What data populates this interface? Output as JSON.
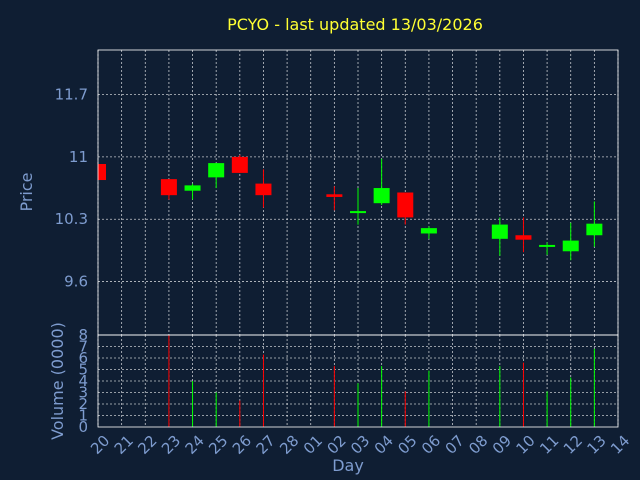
{
  "chart_data": {
    "type": "candlestick",
    "title": "PCYO - last updated 13/03/2026",
    "xlabel": "Day",
    "ylabel": "Price",
    "volume_label": "Volume (0000)",
    "x_ticks": [
      "20",
      "21",
      "22",
      "23",
      "24",
      "25",
      "26",
      "27",
      "28",
      "01",
      "02",
      "03",
      "04",
      "05",
      "06",
      "07",
      "08",
      "09",
      "10",
      "11",
      "12",
      "13",
      "14"
    ],
    "y_ticks": [
      "9.6",
      "10.3",
      "11",
      "11.7"
    ],
    "ylim": [
      9.0,
      12.2
    ],
    "volume_ticks": [
      "0",
      "1",
      "2",
      "3",
      "4",
      "5",
      "6",
      "7",
      "8"
    ],
    "volume_ylim": [
      0,
      8
    ],
    "grid": true,
    "colors": {
      "up": "#00ff00",
      "down": "#ff0000",
      "title": "#ffff33",
      "labels": "#7e9ccf",
      "background": "#0f1e33"
    },
    "series": [
      {
        "day": "20",
        "open": 10.92,
        "high": 10.92,
        "low": 10.74,
        "close": 10.74,
        "volume": 0
      },
      {
        "day": "23",
        "open": 10.75,
        "high": 10.75,
        "low": 10.52,
        "close": 10.57,
        "volume": 8.0
      },
      {
        "day": "24",
        "open": 10.62,
        "high": 10.7,
        "low": 10.52,
        "close": 10.68,
        "volume": 4.0
      },
      {
        "day": "25",
        "open": 10.77,
        "high": 10.93,
        "low": 10.65,
        "close": 10.93,
        "volume": 3.0
      },
      {
        "day": "26",
        "open": 11.0,
        "high": 11.02,
        "low": 10.82,
        "close": 10.82,
        "volume": 2.3
      },
      {
        "day": "27",
        "open": 10.7,
        "high": 10.86,
        "low": 10.43,
        "close": 10.57,
        "volume": 6.3
      },
      {
        "day": "02",
        "open": 10.58,
        "high": 10.67,
        "low": 10.4,
        "close": 10.55,
        "volume": 5.3
      },
      {
        "day": "03",
        "open": 10.36,
        "high": 10.65,
        "low": 10.24,
        "close": 10.38,
        "volume": 3.8
      },
      {
        "day": "04",
        "open": 10.48,
        "high": 10.98,
        "low": 10.46,
        "close": 10.65,
        "volume": 5.3
      },
      {
        "day": "05",
        "open": 10.6,
        "high": 10.6,
        "low": 10.24,
        "close": 10.32,
        "volume": 3.1
      },
      {
        "day": "06",
        "open": 10.14,
        "high": 10.22,
        "low": 10.08,
        "close": 10.2,
        "volume": 4.9
      },
      {
        "day": "09",
        "open": 10.08,
        "high": 10.32,
        "low": 9.89,
        "close": 10.24,
        "volume": 5.3
      },
      {
        "day": "10",
        "open": 10.12,
        "high": 10.32,
        "low": 9.93,
        "close": 10.07,
        "volume": 5.6
      },
      {
        "day": "11",
        "open": 10.0,
        "high": 10.04,
        "low": 9.9,
        "close": 10.0,
        "volume": 3.1
      },
      {
        "day": "12",
        "open": 9.94,
        "high": 10.26,
        "low": 9.84,
        "close": 10.06,
        "volume": 4.3
      },
      {
        "day": "13",
        "open": 10.12,
        "high": 10.5,
        "low": 9.99,
        "close": 10.25,
        "volume": 6.8
      }
    ]
  }
}
